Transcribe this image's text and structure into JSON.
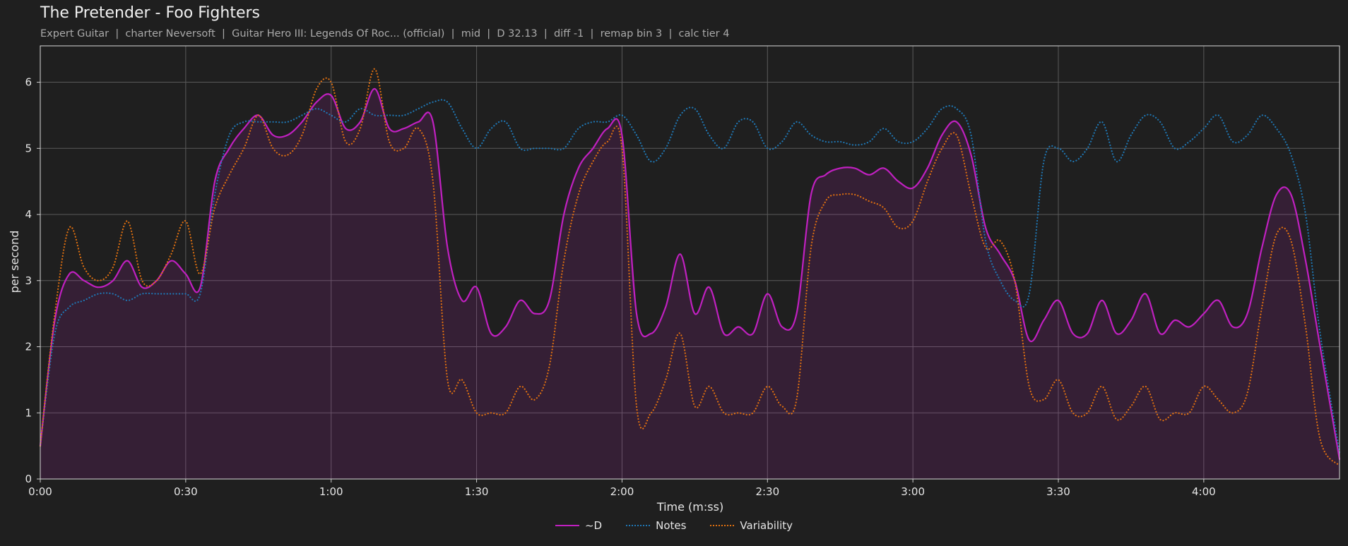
{
  "chart_data": {
    "type": "line",
    "title": "The Pretender - Foo Fighters",
    "subtitle": "Expert Guitar  |  charter Neversoft  |  Guitar Hero III: Legends Of Roc... (official)  |  mid  |  D 32.13  |  diff -1  |  remap bin 3  |  calc tier 4",
    "xlabel": "Time (m:ss)",
    "ylabel": "per second",
    "xlim": [
      0,
      268
    ],
    "ylim": [
      0,
      6.55
    ],
    "x_ticks": [
      0,
      30,
      60,
      90,
      120,
      150,
      180,
      210,
      240
    ],
    "x_tick_labels": [
      "0:00",
      "0:30",
      "1:00",
      "1:30",
      "2:00",
      "2:30",
      "3:00",
      "3:30",
      "4:00"
    ],
    "y_ticks": [
      0,
      1,
      2,
      3,
      4,
      5,
      6
    ],
    "y_tick_labels": [
      "0",
      "1",
      "2",
      "3",
      "4",
      "5",
      "6"
    ],
    "grid": true,
    "legend_position": "bottom-center",
    "x": [
      0,
      3,
      6,
      9,
      12,
      15,
      18,
      21,
      24,
      27,
      30,
      33,
      36,
      39,
      42,
      45,
      48,
      51,
      54,
      57,
      60,
      63,
      66,
      69,
      72,
      75,
      78,
      81,
      84,
      87,
      90,
      93,
      96,
      99,
      102,
      105,
      108,
      111,
      114,
      117,
      120,
      123,
      126,
      129,
      132,
      135,
      138,
      141,
      144,
      147,
      150,
      153,
      156,
      159,
      162,
      165,
      168,
      171,
      174,
      177,
      180,
      183,
      186,
      189,
      192,
      195,
      198,
      201,
      204,
      207,
      210,
      213,
      216,
      219,
      222,
      225,
      228,
      231,
      234,
      237,
      240,
      243,
      246,
      249,
      252,
      255,
      258,
      261,
      264,
      268
    ],
    "series": [
      {
        "name": "~D",
        "color": "#c020c0",
        "style": "solid",
        "filled": true,
        "values": [
          0.5,
          2.4,
          3.1,
          3.0,
          2.9,
          3.0,
          3.3,
          2.9,
          3.0,
          3.3,
          3.1,
          2.9,
          4.5,
          5.0,
          5.3,
          5.5,
          5.2,
          5.2,
          5.4,
          5.7,
          5.8,
          5.3,
          5.4,
          5.9,
          5.3,
          5.3,
          5.4,
          5.4,
          3.5,
          2.7,
          2.9,
          2.2,
          2.3,
          2.7,
          2.5,
          2.7,
          4.0,
          4.7,
          5.0,
          5.3,
          5.2,
          2.5,
          2.2,
          2.6,
          3.4,
          2.5,
          2.9,
          2.2,
          2.3,
          2.2,
          2.8,
          2.3,
          2.5,
          4.3,
          4.6,
          4.7,
          4.7,
          4.6,
          4.7,
          4.5,
          4.4,
          4.7,
          5.2,
          5.4,
          4.9,
          3.8,
          3.4,
          3.0,
          2.1,
          2.4,
          2.7,
          2.2,
          2.2,
          2.7,
          2.2,
          2.4,
          2.8,
          2.2,
          2.4,
          2.3,
          2.5,
          2.7,
          2.3,
          2.5,
          3.5,
          4.3,
          4.3,
          3.3,
          2.0,
          0.3
        ]
      },
      {
        "name": "Notes",
        "color": "#1f77b4",
        "style": "dotted",
        "filled": false,
        "values": [
          0.5,
          2.2,
          2.6,
          2.7,
          2.8,
          2.8,
          2.7,
          2.8,
          2.8,
          2.8,
          2.8,
          2.8,
          4.3,
          5.2,
          5.4,
          5.4,
          5.4,
          5.4,
          5.5,
          5.6,
          5.5,
          5.4,
          5.6,
          5.5,
          5.5,
          5.5,
          5.6,
          5.7,
          5.7,
          5.3,
          5.0,
          5.3,
          5.4,
          5.0,
          5.0,
          5.0,
          5.0,
          5.3,
          5.4,
          5.4,
          5.5,
          5.2,
          4.8,
          5.0,
          5.5,
          5.6,
          5.2,
          5.0,
          5.4,
          5.4,
          5.0,
          5.1,
          5.4,
          5.2,
          5.1,
          5.1,
          5.05,
          5.1,
          5.3,
          5.1,
          5.1,
          5.3,
          5.6,
          5.6,
          5.2,
          3.6,
          3.0,
          2.7,
          2.8,
          4.8,
          5.0,
          4.8,
          5.0,
          5.4,
          4.8,
          5.2,
          5.5,
          5.4,
          5.0,
          5.1,
          5.3,
          5.5,
          5.1,
          5.2,
          5.5,
          5.3,
          4.9,
          4.0,
          2.2,
          0.4
        ]
      },
      {
        "name": "Variability",
        "color": "#e07010",
        "style": "dotted",
        "filled": false,
        "values": [
          0.5,
          2.5,
          3.8,
          3.2,
          3.0,
          3.2,
          3.9,
          3.0,
          3.0,
          3.4,
          3.9,
          3.1,
          4.1,
          4.6,
          5.0,
          5.5,
          5.0,
          4.9,
          5.2,
          5.9,
          6.0,
          5.1,
          5.3,
          6.2,
          5.1,
          5.0,
          5.3,
          4.5,
          1.5,
          1.5,
          1.0,
          1.0,
          1.0,
          1.4,
          1.2,
          1.7,
          3.3,
          4.3,
          4.8,
          5.1,
          5.0,
          1.1,
          1.0,
          1.5,
          2.2,
          1.1,
          1.4,
          1.0,
          1.0,
          1.0,
          1.4,
          1.1,
          1.2,
          3.5,
          4.2,
          4.3,
          4.3,
          4.2,
          4.1,
          3.8,
          3.9,
          4.5,
          5.0,
          5.2,
          4.3,
          3.5,
          3.6,
          3.0,
          1.4,
          1.2,
          1.5,
          1.0,
          1.0,
          1.4,
          0.9,
          1.1,
          1.4,
          0.9,
          1.0,
          1.0,
          1.4,
          1.2,
          1.0,
          1.3,
          2.6,
          3.7,
          3.6,
          2.3,
          0.6,
          0.2
        ]
      }
    ]
  }
}
